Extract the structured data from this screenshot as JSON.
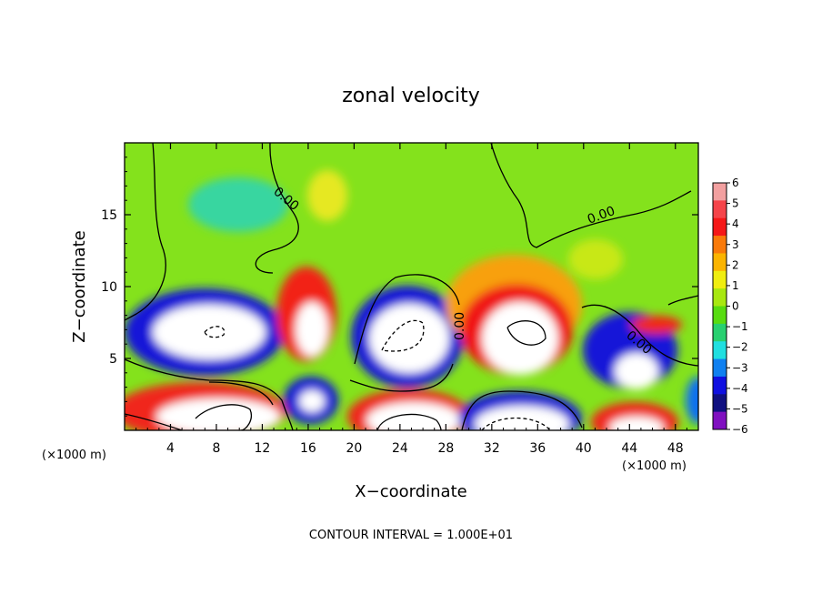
{
  "chart_data": {
    "type": "heatmap",
    "title": "zonal velocity",
    "xlabel": "X−coordinate",
    "ylabel": "Z−coordinate",
    "x_scale_note": "(×1000 m)",
    "z_scale_note": "(×1000 m)",
    "xlim": [
      0,
      50
    ],
    "ylim": [
      0,
      20
    ],
    "x_ticks": [
      4,
      8,
      12,
      16,
      20,
      24,
      28,
      32,
      36,
      40,
      44,
      48
    ],
    "y_ticks": [
      5,
      10,
      15
    ],
    "contour_interval_text": "CONTOUR INTERVAL = 1.000E+01",
    "contour_labels": [
      "0.00",
      "0.00",
      "0.00",
      "0.00"
    ],
    "colorbar": {
      "ticks": [
        "6",
        "5",
        "4",
        "3",
        "2",
        "1",
        "0",
        "−1",
        "−2",
        "−3",
        "−4",
        "−5",
        "−6"
      ],
      "range": [
        -6,
        6
      ],
      "colors": [
        "#f2a0a0",
        "#f5444a",
        "#f51818",
        "#f97a0a",
        "#fbb400",
        "#f0ee10",
        "#a8e810",
        "#58dc10",
        "#28d070",
        "#20dfe0",
        "#1080f0",
        "#1010e0",
        "#101080",
        "#8010c0"
      ]
    },
    "features": [
      {
        "x": 8,
        "z": 6.5,
        "v": -12
      },
      {
        "x": 8.5,
        "z": 1.2,
        "v": 12
      },
      {
        "x": 16.5,
        "z": 7.5,
        "v": 12
      },
      {
        "x": 16.5,
        "z": 2,
        "v": -12
      },
      {
        "x": 24,
        "z": 7,
        "v": -12
      },
      {
        "x": 24.5,
        "z": 0.8,
        "v": 12
      },
      {
        "x": 33.5,
        "z": 6.8,
        "v": 12
      },
      {
        "x": 34,
        "z": 1,
        "v": -12
      },
      {
        "x": 44,
        "z": 4.3,
        "v": -12
      },
      {
        "x": 44.5,
        "z": 1,
        "v": 12
      }
    ]
  }
}
